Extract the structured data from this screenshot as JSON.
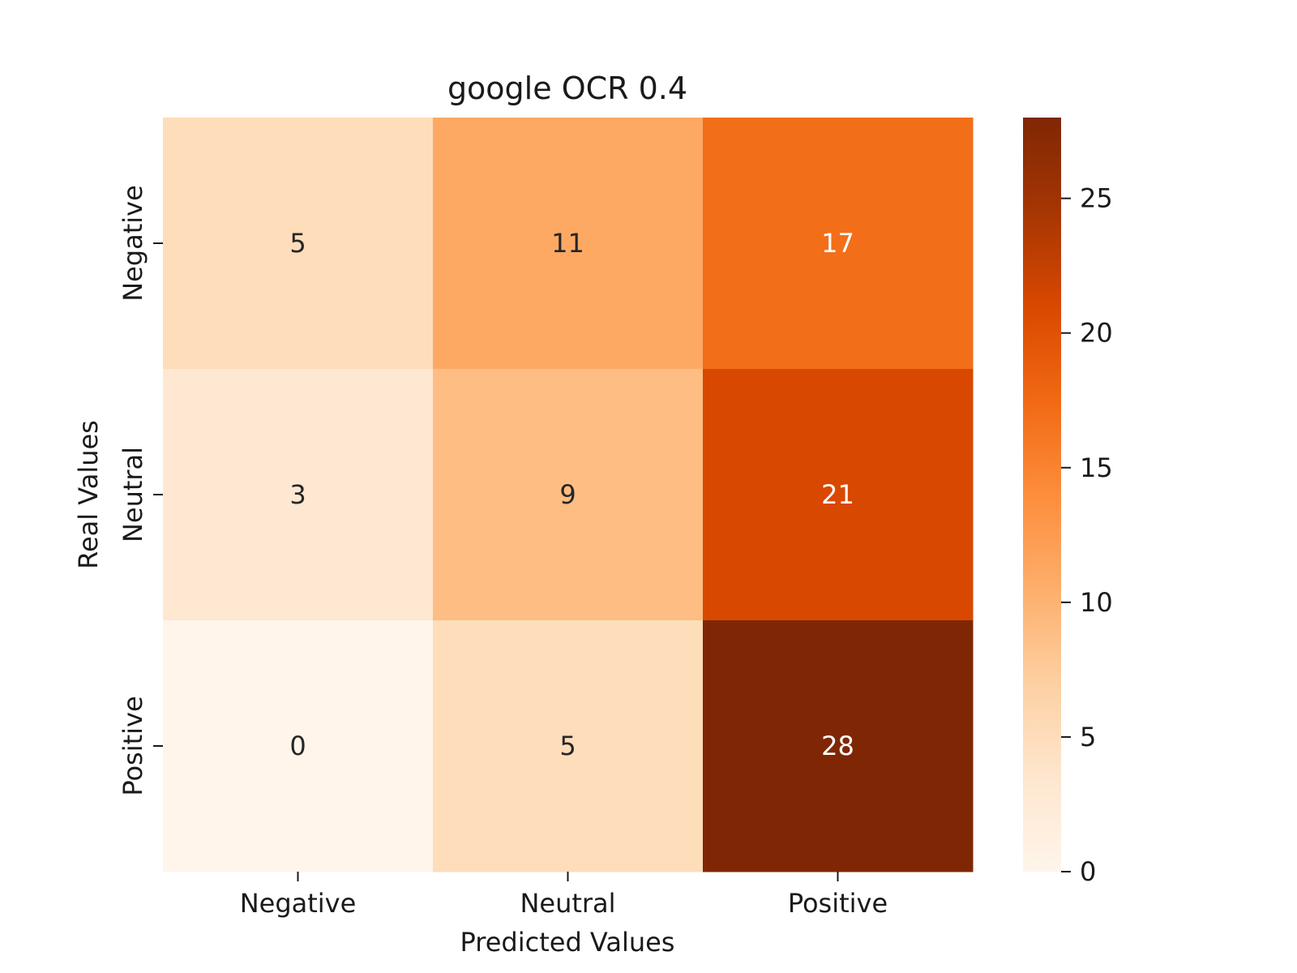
{
  "chart_data": {
    "type": "heatmap",
    "title": "google OCR 0.4",
    "xlabel": "Predicted Values",
    "ylabel": "Real Values",
    "x_categories": [
      "Negative",
      "Neutral",
      "Positive"
    ],
    "y_categories": [
      "Negative",
      "Neutral",
      "Positive"
    ],
    "values": [
      [
        5,
        11,
        17
      ],
      [
        3,
        9,
        21
      ],
      [
        0,
        5,
        28
      ]
    ],
    "colormap": "Oranges",
    "colorbar": {
      "range": [
        0,
        28
      ],
      "ticks": [
        0,
        5,
        10,
        15,
        20,
        25
      ],
      "colors": [
        "#fff5eb",
        "#fee6ce",
        "#fdd0a2",
        "#fdae6b",
        "#fd8d3c",
        "#f16913",
        "#d94801",
        "#a63603",
        "#7f2704"
      ]
    },
    "annotation_colors": {
      "dark": "#262626",
      "light": "#ffffff"
    }
  }
}
